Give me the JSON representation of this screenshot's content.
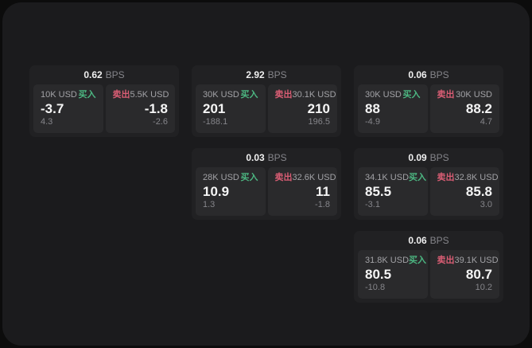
{
  "labels": {
    "bps_unit": "BPS",
    "buy": "买入",
    "sell": "卖出"
  },
  "colors": {
    "buy": "#4cb782",
    "sell": "#d95d74"
  },
  "cards": [
    {
      "grid": {
        "col": 1,
        "row": 1
      },
      "bps": "0.62",
      "buy": {
        "size": "10K USD",
        "price": "-3.7",
        "delta": "4.3"
      },
      "sell": {
        "size": "5.5K USD",
        "price": "-1.8",
        "delta": "-2.6"
      }
    },
    {
      "grid": {
        "col": 2,
        "row": 1
      },
      "bps": "2.92",
      "buy": {
        "size": "30K USD",
        "price": "201",
        "delta": "-188.1"
      },
      "sell": {
        "size": "30.1K USD",
        "price": "210",
        "delta": "196.5"
      }
    },
    {
      "grid": {
        "col": 3,
        "row": 1
      },
      "bps": "0.06",
      "buy": {
        "size": "30K USD",
        "price": "88",
        "delta": "-4.9"
      },
      "sell": {
        "size": "30K USD",
        "price": "88.2",
        "delta": "4.7"
      }
    },
    {
      "grid": {
        "col": 2,
        "row": 2
      },
      "bps": "0.03",
      "buy": {
        "size": "28K USD",
        "price": "10.9",
        "delta": "1.3"
      },
      "sell": {
        "size": "32.6K USD",
        "price": "11",
        "delta": "-1.8"
      }
    },
    {
      "grid": {
        "col": 3,
        "row": 2
      },
      "bps": "0.09",
      "buy": {
        "size": "34.1K USD",
        "price": "85.5",
        "delta": "-3.1"
      },
      "sell": {
        "size": "32.8K USD",
        "price": "85.8",
        "delta": "3.0"
      }
    },
    {
      "grid": {
        "col": 3,
        "row": 3
      },
      "bps": "0.06",
      "buy": {
        "size": "31.8K USD",
        "price": "80.5",
        "delta": "-10.8"
      },
      "sell": {
        "size": "39.1K USD",
        "price": "80.7",
        "delta": "10.2"
      }
    }
  ]
}
